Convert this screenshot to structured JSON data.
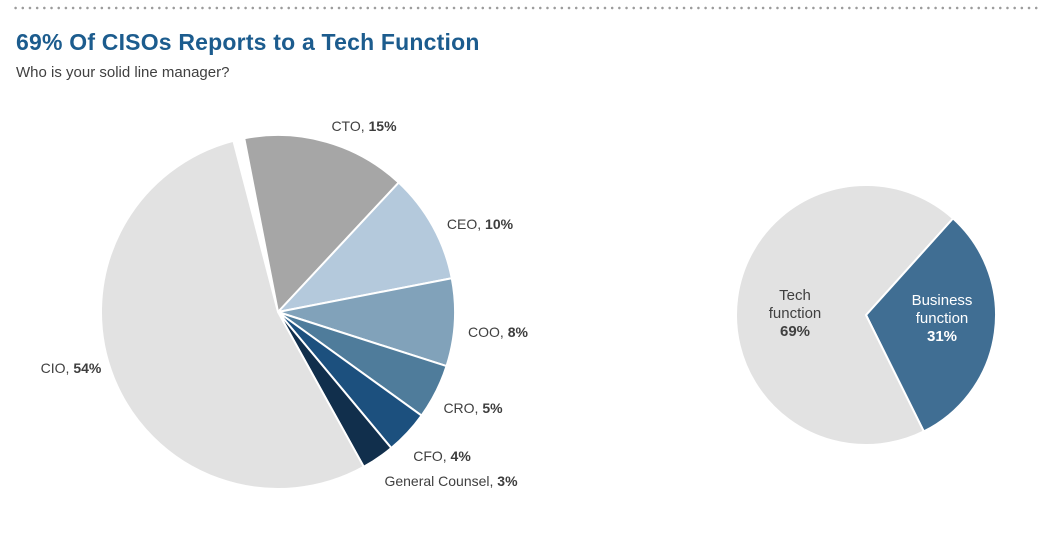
{
  "header": {
    "title": "69% Of CISOs Reports to a Tech Function",
    "subtitle": "Who is your solid line manager?"
  },
  "colors": {
    "title_text": "#1c5c8e",
    "body_text": "#404040",
    "divider_dots": "#9b9b9b",
    "slice_border": "#ffffff"
  },
  "chart_data": [
    {
      "type": "pie",
      "name": "solid-line-manager-breakdown",
      "question": "Who is your solid line manager?",
      "start_angle_deg": -11,
      "label_style": "outside",
      "label_format": "LABEL, VALUE%",
      "slices": [
        {
          "label": "CTO",
          "value": 15,
          "color": "#a6a6a6"
        },
        {
          "label": "CEO",
          "value": 10,
          "color": "#b4c9dc"
        },
        {
          "label": "COO",
          "value": 8,
          "color": "#81a2ba"
        },
        {
          "label": "CRO",
          "value": 5,
          "color": "#4f7c9b"
        },
        {
          "label": "CFO",
          "value": 4,
          "color": "#1c507e"
        },
        {
          "label": "General Counsel",
          "value": 3,
          "color": "#112f4c"
        },
        {
          "label": "CIO",
          "value": 54,
          "color": "#e2e2e2"
        }
      ]
    },
    {
      "type": "pie",
      "name": "tech-vs-business-function",
      "start_angle_deg": 42,
      "label_style": "inside",
      "slices": [
        {
          "label": "Business function",
          "value": 31,
          "color": "#406e93",
          "text_color": "#ffffff"
        },
        {
          "label": "Tech function",
          "value": 69,
          "color": "#e2e2e2",
          "text_color": "#404040"
        }
      ]
    }
  ]
}
